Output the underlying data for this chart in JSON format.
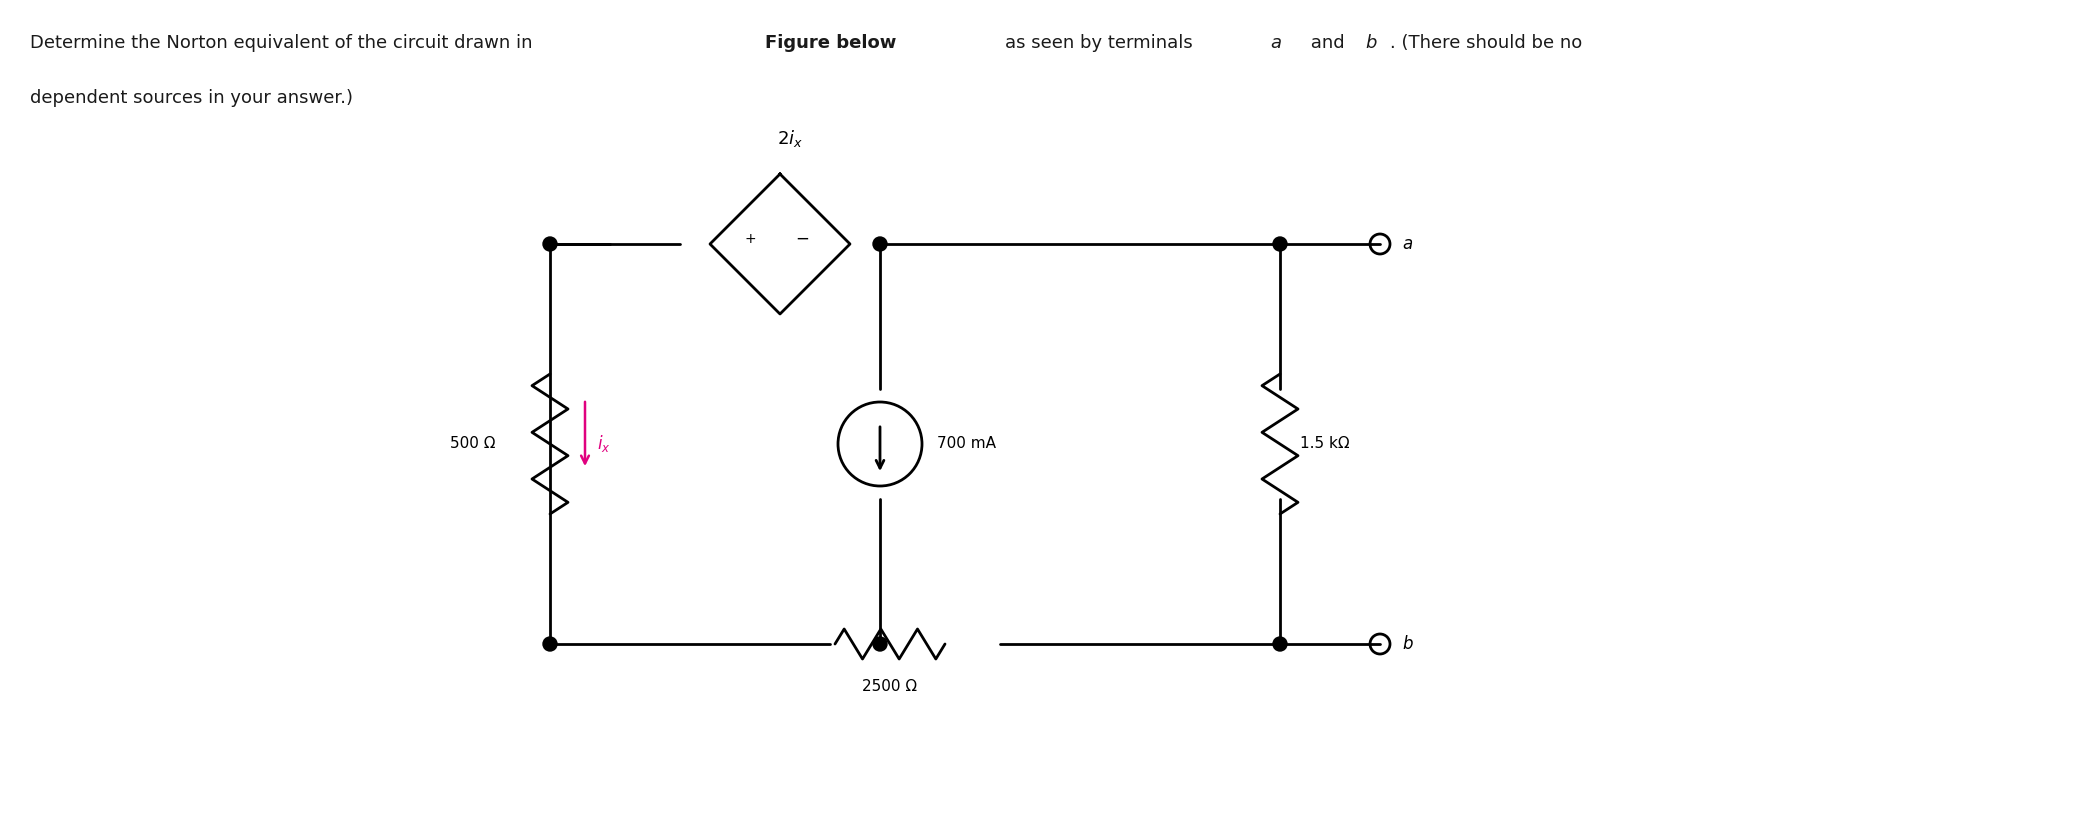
{
  "title_text": "Determine the Norton equivalent of the circuit drawn in",
  "title_bold": "Figure below",
  "title_rest": "as seen by terminals α and b. (There should be no\ndependent sources in your answer.)",
  "bg_color": "#ffffff",
  "line_color": "#000000",
  "node_color": "#000000",
  "terminal_color": "#000000",
  "ix_color": "#e0007f",
  "label_500": "500 Ω",
  "label_1500": "1.5 kΩ",
  "label_2500": "2500 Ω",
  "label_700": "700 mA",
  "label_2ix": "2iₓ",
  "label_ix": "iₓ",
  "label_a": "a",
  "label_b": "b",
  "label_plus": "+",
  "label_minus": "−",
  "lw": 2.0,
  "fig_width": 20.95,
  "fig_height": 8.24,
  "dpi": 100
}
